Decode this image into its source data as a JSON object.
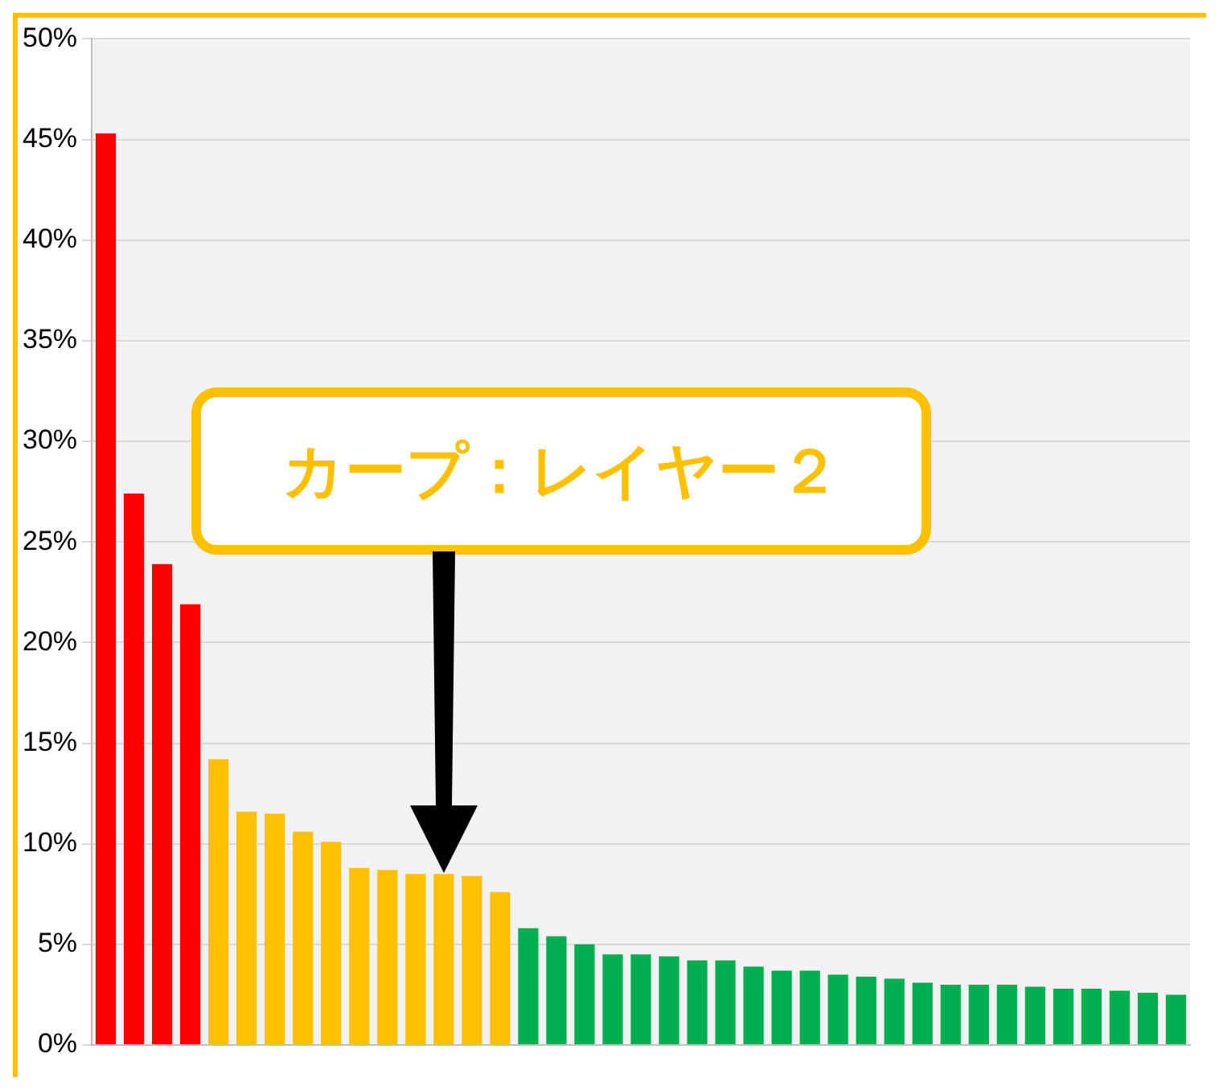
{
  "chart_data": {
    "type": "bar",
    "categories": [
      null,
      null,
      null,
      null,
      null,
      null,
      null,
      null,
      null,
      null,
      null,
      null,
      null,
      null,
      null,
      null,
      null,
      null,
      null,
      null,
      null,
      null,
      null,
      null,
      null,
      null,
      null,
      null,
      null,
      null,
      null,
      null,
      null,
      null,
      null,
      null,
      null,
      null,
      null
    ],
    "values": [
      45.3,
      27.4,
      23.9,
      21.9,
      14.2,
      11.6,
      11.5,
      10.6,
      10.1,
      8.8,
      8.7,
      8.5,
      8.5,
      8.4,
      7.6,
      5.8,
      5.4,
      5.0,
      4.5,
      4.5,
      4.4,
      4.2,
      4.2,
      3.9,
      3.7,
      3.7,
      3.5,
      3.4,
      3.3,
      3.1,
      3.0,
      3.0,
      3.0,
      2.9,
      2.8,
      2.8,
      2.7,
      2.6,
      2.5
    ],
    "colors": [
      "#ff0000",
      "#ff0000",
      "#ff0000",
      "#ff0000",
      "#ffc000",
      "#ffc000",
      "#ffc000",
      "#ffc000",
      "#ffc000",
      "#ffc000",
      "#ffc000",
      "#ffc000",
      "#ffc000",
      "#ffc000",
      "#ffc000",
      "#00b050",
      "#00b050",
      "#00b050",
      "#00b050",
      "#00b050",
      "#00b050",
      "#00b050",
      "#00b050",
      "#00b050",
      "#00b050",
      "#00b050",
      "#00b050",
      "#00b050",
      "#00b050",
      "#00b050",
      "#00b050",
      "#00b050",
      "#00b050",
      "#00b050",
      "#00b050",
      "#00b050",
      "#00b050",
      "#00b050",
      "#00b050"
    ],
    "ylim": [
      0,
      50
    ],
    "yticks": [
      {
        "value": 0,
        "label": "0%"
      },
      {
        "value": 5,
        "label": "5%"
      },
      {
        "value": 10,
        "label": "10%"
      },
      {
        "value": 15,
        "label": "15%"
      },
      {
        "value": 20,
        "label": "20%"
      },
      {
        "value": 25,
        "label": "25%"
      },
      {
        "value": 30,
        "label": "30%"
      },
      {
        "value": 35,
        "label": "35%"
      },
      {
        "value": 40,
        "label": "40%"
      },
      {
        "value": 45,
        "label": "45%"
      },
      {
        "value": 50,
        "label": "50%"
      }
    ],
    "tick_labels": "y",
    "grid": "y",
    "legend": false,
    "annotations": [
      "カープ：レイヤー２"
    ]
  }
}
